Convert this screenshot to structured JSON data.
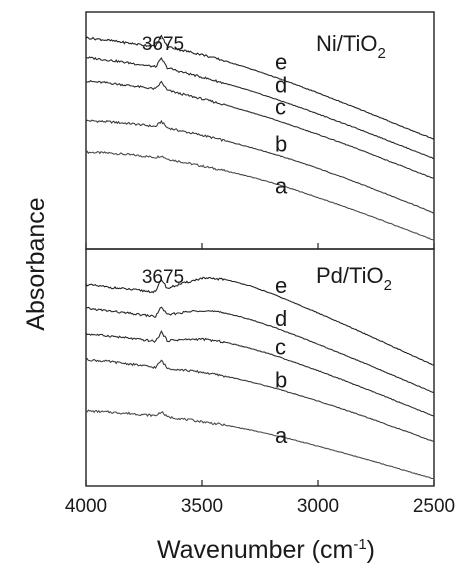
{
  "chart_data": [
    {
      "type": "line",
      "panel_label": "Ni/TiO",
      "panel_label_sub": "2",
      "peak_label": "3675",
      "x_range": [
        4000,
        2500
      ],
      "series": [
        {
          "name": "a",
          "points": [
            [
              4000,
              24.5
            ],
            [
              3900,
              24.3
            ],
            [
              3800,
              23.8
            ],
            [
              3700,
              23.2
            ],
            [
              3675,
              23.6
            ],
            [
              3650,
              22.8
            ],
            [
              3600,
              22.2
            ],
            [
              3500,
              21.0
            ],
            [
              3400,
              19.8
            ],
            [
              3300,
              18.4
            ],
            [
              3200,
              16.8
            ],
            [
              3100,
              15.0
            ],
            [
              3000,
              13.0
            ],
            [
              2900,
              11.0
            ],
            [
              2800,
              8.9
            ],
            [
              2700,
              6.7
            ],
            [
              2600,
              4.5
            ],
            [
              2500,
              2.2
            ]
          ]
        },
        {
          "name": "b",
          "points": [
            [
              4000,
              32.5
            ],
            [
              3900,
              32.2
            ],
            [
              3800,
              31.7
            ],
            [
              3700,
              31.0
            ],
            [
              3675,
              32.3
            ],
            [
              3650,
              30.7
            ],
            [
              3600,
              30.0
            ],
            [
              3500,
              28.8
            ],
            [
              3400,
              27.4
            ],
            [
              3300,
              25.9
            ],
            [
              3200,
              24.2
            ],
            [
              3100,
              22.4
            ],
            [
              3000,
              20.4
            ],
            [
              2900,
              18.3
            ],
            [
              2800,
              16.1
            ],
            [
              2700,
              13.8
            ],
            [
              2600,
              11.5
            ],
            [
              2500,
              9.1
            ]
          ]
        },
        {
          "name": "c",
          "points": [
            [
              4000,
              42.5
            ],
            [
              3900,
              42.0
            ],
            [
              3800,
              41.3
            ],
            [
              3700,
              40.5
            ],
            [
              3675,
              42.3
            ],
            [
              3650,
              40.2
            ],
            [
              3600,
              39.4
            ],
            [
              3500,
              38.0
            ],
            [
              3400,
              36.5
            ],
            [
              3300,
              34.8
            ],
            [
              3200,
              33.0
            ],
            [
              3100,
              31.0
            ],
            [
              3000,
              29.0
            ],
            [
              2900,
              26.9
            ],
            [
              2800,
              24.7
            ],
            [
              2700,
              22.4
            ],
            [
              2600,
              20.1
            ],
            [
              2500,
              17.8
            ]
          ]
        },
        {
          "name": "d",
          "points": [
            [
              4000,
              48.5
            ],
            [
              3900,
              47.8
            ],
            [
              3800,
              47.0
            ],
            [
              3700,
              46.1
            ],
            [
              3675,
              48.2
            ],
            [
              3650,
              45.9
            ],
            [
              3600,
              45.0
            ],
            [
              3500,
              43.5
            ],
            [
              3400,
              41.9
            ],
            [
              3300,
              40.2
            ],
            [
              3200,
              38.3
            ],
            [
              3100,
              36.3
            ],
            [
              3000,
              34.2
            ],
            [
              2900,
              32.0
            ],
            [
              2800,
              29.8
            ],
            [
              2700,
              27.5
            ],
            [
              2600,
              25.2
            ],
            [
              2500,
              22.9
            ]
          ]
        },
        {
          "name": "e",
          "points": [
            [
              4000,
              53.5
            ],
            [
              3900,
              52.8
            ],
            [
              3800,
              52.0
            ],
            [
              3700,
              51.3
            ],
            [
              3675,
              54.0
            ],
            [
              3650,
              51.3
            ],
            [
              3600,
              50.5
            ],
            [
              3500,
              49.2
            ],
            [
              3400,
              47.6
            ],
            [
              3300,
              45.8
            ],
            [
              3200,
              43.8
            ],
            [
              3100,
              41.7
            ],
            [
              3000,
              39.5
            ],
            [
              2900,
              37.2
            ],
            [
              2800,
              34.9
            ],
            [
              2700,
              32.5
            ],
            [
              2600,
              30.1
            ],
            [
              2500,
              27.8
            ]
          ]
        }
      ]
    },
    {
      "type": "line",
      "panel_label": "Pd/TiO",
      "panel_label_sub": "2",
      "peak_label": "3675",
      "x_range": [
        4000,
        2500
      ],
      "series": [
        {
          "name": "a",
          "points": [
            [
              4000,
              19.0
            ],
            [
              3900,
              18.7
            ],
            [
              3800,
              18.3
            ],
            [
              3700,
              17.8
            ],
            [
              3675,
              18.8
            ],
            [
              3650,
              17.5
            ],
            [
              3600,
              17.1
            ],
            [
              3500,
              16.3
            ],
            [
              3400,
              15.4
            ],
            [
              3300,
              14.3
            ],
            [
              3200,
              13.0
            ],
            [
              3100,
              11.6
            ],
            [
              3000,
              10.1
            ],
            [
              2900,
              8.5
            ],
            [
              2800,
              6.9
            ],
            [
              2700,
              5.2
            ],
            [
              2600,
              3.5
            ],
            [
              2500,
              1.8
            ]
          ]
        },
        {
          "name": "b",
          "points": [
            [
              4000,
              32.0
            ],
            [
              3900,
              31.5
            ],
            [
              3800,
              30.8
            ],
            [
              3700,
              30.0
            ],
            [
              3675,
              31.8
            ],
            [
              3650,
              29.8
            ],
            [
              3600,
              29.5
            ],
            [
              3500,
              28.8
            ],
            [
              3400,
              27.8
            ],
            [
              3300,
              26.5
            ],
            [
              3200,
              25.0
            ],
            [
              3100,
              23.3
            ],
            [
              3000,
              21.5
            ],
            [
              2900,
              19.6
            ],
            [
              2800,
              17.6
            ],
            [
              2700,
              15.5
            ],
            [
              2600,
              13.4
            ],
            [
              2500,
              11.2
            ]
          ]
        },
        {
          "name": "c",
          "points": [
            [
              4000,
              38.5
            ],
            [
              3900,
              38.0
            ],
            [
              3800,
              37.3
            ],
            [
              3700,
              36.6
            ],
            [
              3675,
              39.0
            ],
            [
              3650,
              36.8
            ],
            [
              3600,
              37.0
            ],
            [
              3500,
              37.2
            ],
            [
              3400,
              36.4
            ],
            [
              3300,
              35.0
            ],
            [
              3200,
              33.3
            ],
            [
              3100,
              31.3
            ],
            [
              3000,
              29.2
            ],
            [
              2900,
              27.0
            ],
            [
              2800,
              24.7
            ],
            [
              2700,
              22.4
            ],
            [
              2600,
              20.0
            ],
            [
              2500,
              17.7
            ]
          ]
        },
        {
          "name": "d",
          "points": [
            [
              4000,
              45.0
            ],
            [
              3900,
              44.3
            ],
            [
              3800,
              43.6
            ],
            [
              3700,
              42.9
            ],
            [
              3675,
              45.4
            ],
            [
              3650,
              43.3
            ],
            [
              3600,
              43.8
            ],
            [
              3500,
              44.5
            ],
            [
              3400,
              43.8
            ],
            [
              3300,
              42.3
            ],
            [
              3200,
              40.4
            ],
            [
              3100,
              38.2
            ],
            [
              3000,
              35.9
            ],
            [
              2900,
              33.5
            ],
            [
              2800,
              31.1
            ],
            [
              2700,
              28.6
            ],
            [
              2600,
              26.1
            ],
            [
              2500,
              23.6
            ]
          ]
        },
        {
          "name": "e",
          "points": [
            [
              4000,
              51.0
            ],
            [
              3900,
              50.3
            ],
            [
              3800,
              49.7
            ],
            [
              3700,
              49.1
            ],
            [
              3675,
              52.4
            ],
            [
              3650,
              50.0
            ],
            [
              3600,
              51.0
            ],
            [
              3500,
              52.6
            ],
            [
              3400,
              52.3
            ],
            [
              3300,
              50.8
            ],
            [
              3200,
              48.7
            ],
            [
              3100,
              46.3
            ],
            [
              3000,
              43.8
            ],
            [
              2900,
              41.2
            ],
            [
              2800,
              38.6
            ],
            [
              2700,
              35.9
            ],
            [
              2600,
              33.2
            ],
            [
              2500,
              30.5
            ]
          ]
        }
      ]
    }
  ],
  "x_axis": {
    "ticks": [
      4000,
      3500,
      3000,
      2500
    ],
    "tick_labels": [
      "4000",
      "3500",
      "3000",
      "2500"
    ],
    "title": "Wavenumber (cm",
    "title_sup": "-1",
    "title_end": ")"
  },
  "y_axis": {
    "title": "Absorbance"
  }
}
